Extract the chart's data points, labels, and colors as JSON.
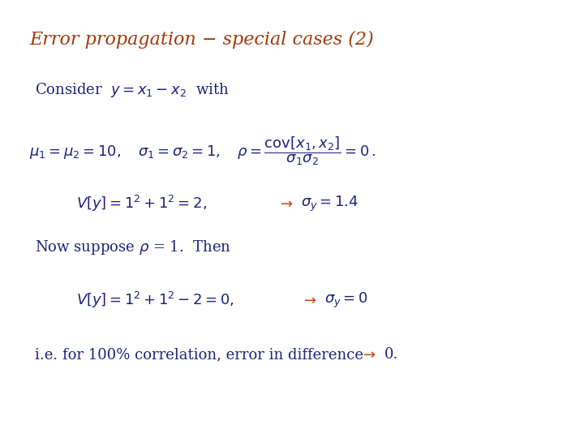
{
  "title": "Error propagation − special cases (2)",
  "title_color": "#a0390a",
  "title_fontsize": 16,
  "background_color": "#ffffff",
  "blue_color": "#1a237e",
  "arrow_color": "#cc4400",
  "body_fontsize": 13,
  "small_fontsize": 12
}
